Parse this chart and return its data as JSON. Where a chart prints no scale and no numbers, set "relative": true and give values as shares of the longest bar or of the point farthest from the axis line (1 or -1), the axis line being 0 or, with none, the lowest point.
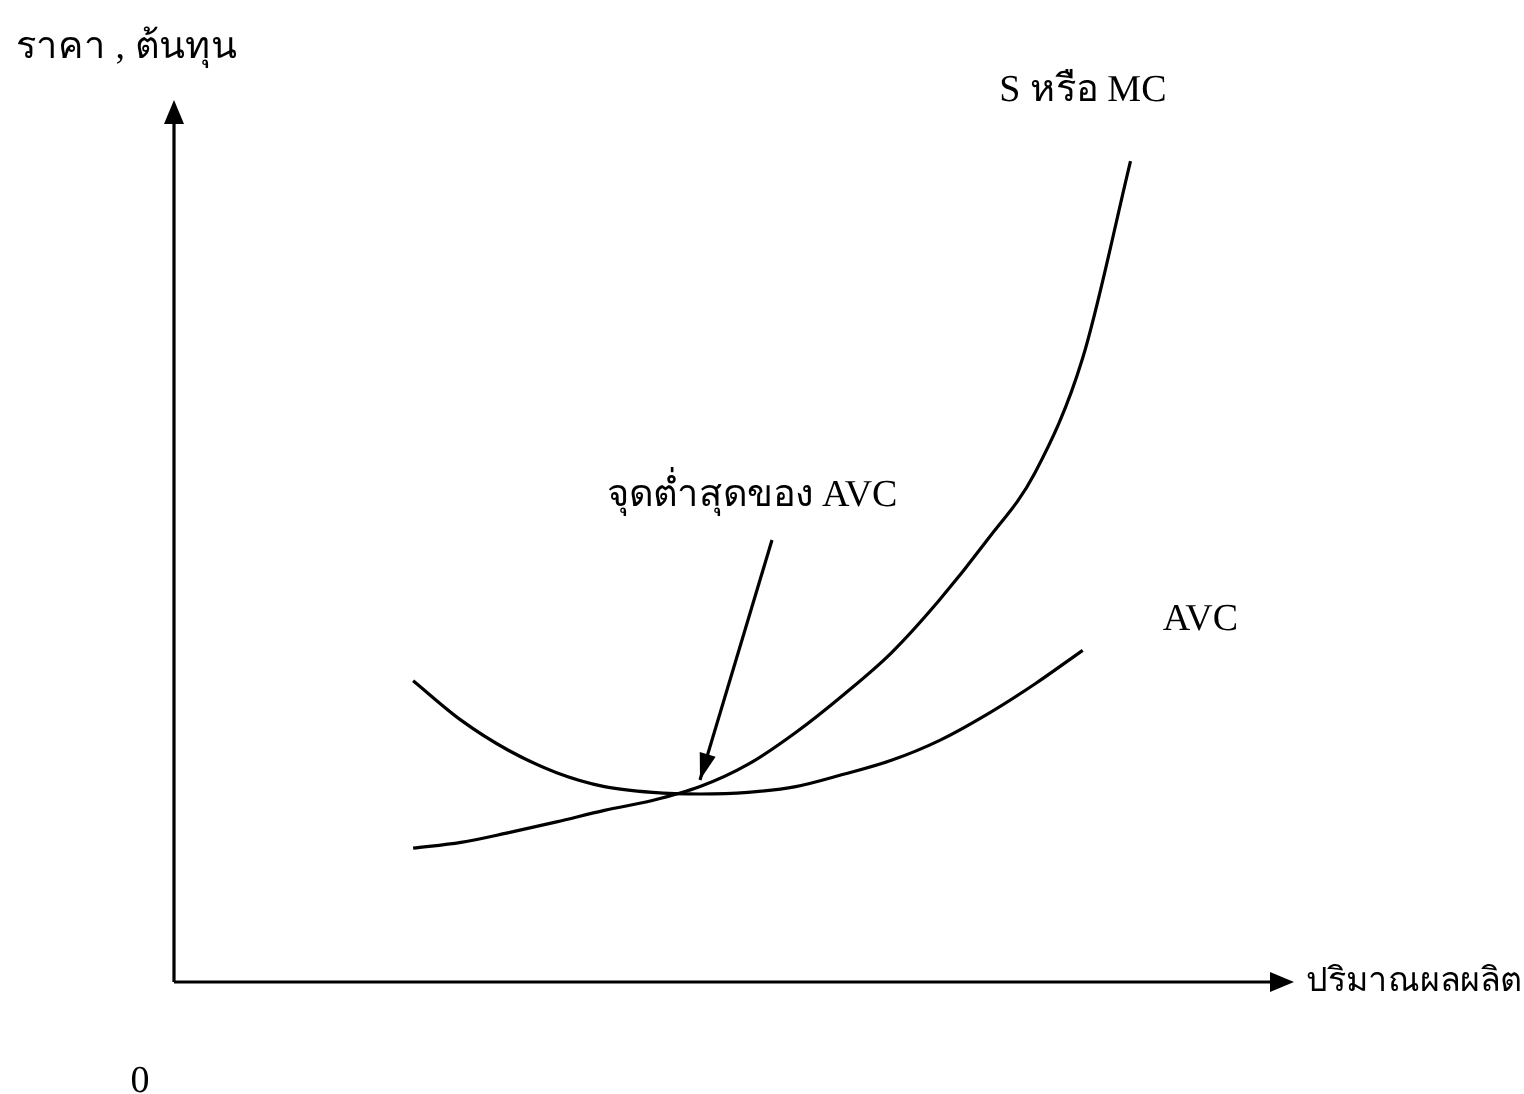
{
  "chart_data": {
    "type": "line",
    "relative": true,
    "ylabel": "ราคา , ต้นทุน",
    "xlabel": "ปริมาณผลผลิต",
    "annotations": [
      "0",
      "จุดต่ำสุดของ AVC"
    ],
    "categories": [
      null,
      null,
      null,
      null,
      null,
      null,
      null,
      null,
      null,
      null,
      null,
      null,
      null,
      null,
      null,
      null,
      null,
      null,
      null,
      null,
      null,
      null,
      null,
      null
    ],
    "series": [
      {
        "name": "S หรือ MC",
        "color": "#000000",
        "values": [
          null,
          null,
          null,
          null,
          null,
          0.163,
          0.17,
          0.182,
          0.195,
          0.209,
          0.221,
          0.238,
          0.265,
          0.304,
          0.35,
          0.401,
          0.465,
          0.538,
          0.62,
          0.76,
          1.0,
          null,
          null,
          null
        ]
      },
      {
        "name": "AVC",
        "color": "#000000",
        "values": [
          null,
          null,
          null,
          null,
          null,
          0.367,
          0.319,
          0.282,
          0.255,
          0.238,
          0.231,
          0.229,
          0.231,
          0.238,
          0.253,
          0.27,
          0.294,
          0.326,
          0.363,
          0.404,
          null,
          null,
          null,
          null
        ]
      }
    ],
    "legend": false,
    "grid": false,
    "tick_labels": false,
    "marker": "none",
    "line_style": "solid"
  }
}
